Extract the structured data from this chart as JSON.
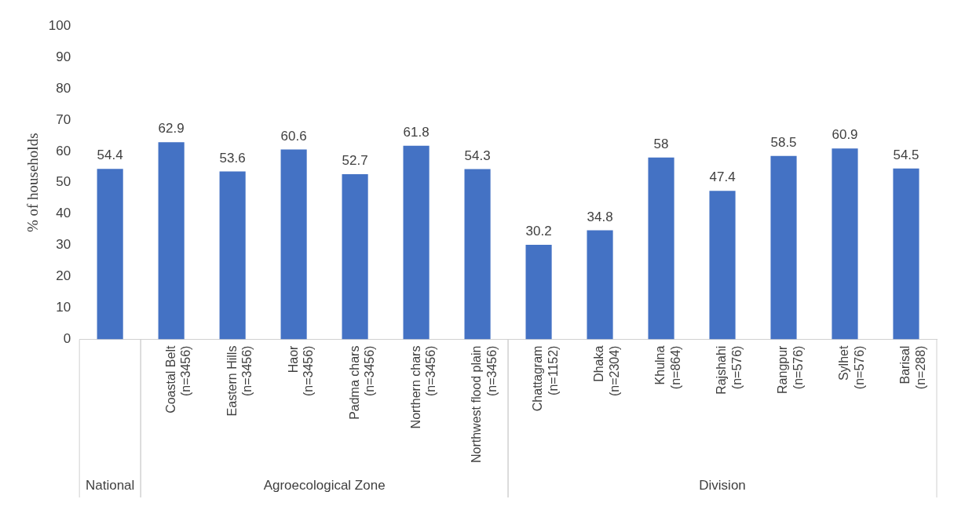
{
  "chart_data": {
    "type": "bar",
    "ylabel": "% of households",
    "categories": [
      null,
      "Coastal Belt (n=3456)",
      "Eastern Hills (n=3456)",
      "Haor (n=3456)",
      "Padma chars (n=3456)",
      "Northern chars (n=3456)",
      "Northwest flood plain (n=3456)",
      "Chattagram (n=1152)",
      "Dhaka (n=2304)",
      "Khulna (n=864)",
      "Rajshahi (n=576)",
      "Rangpur (n=576)",
      "Sylhet (n=576)",
      "Barisal (n=288)"
    ],
    "values": [
      54.4,
      62.9,
      53.6,
      60.6,
      52.7,
      61.8,
      54.3,
      30.2,
      34.8,
      58,
      47.4,
      58.5,
      60.9,
      54.5
    ],
    "color": "#4472c4",
    "ylim": [
      0,
      100
    ],
    "yticks": [
      0,
      10,
      20,
      30,
      40,
      50,
      60,
      70,
      80,
      90,
      100
    ],
    "data_labels": true,
    "grid": false,
    "legend": false,
    "annotations": [
      "National",
      "Agroecological Zone",
      "Division"
    ]
  }
}
